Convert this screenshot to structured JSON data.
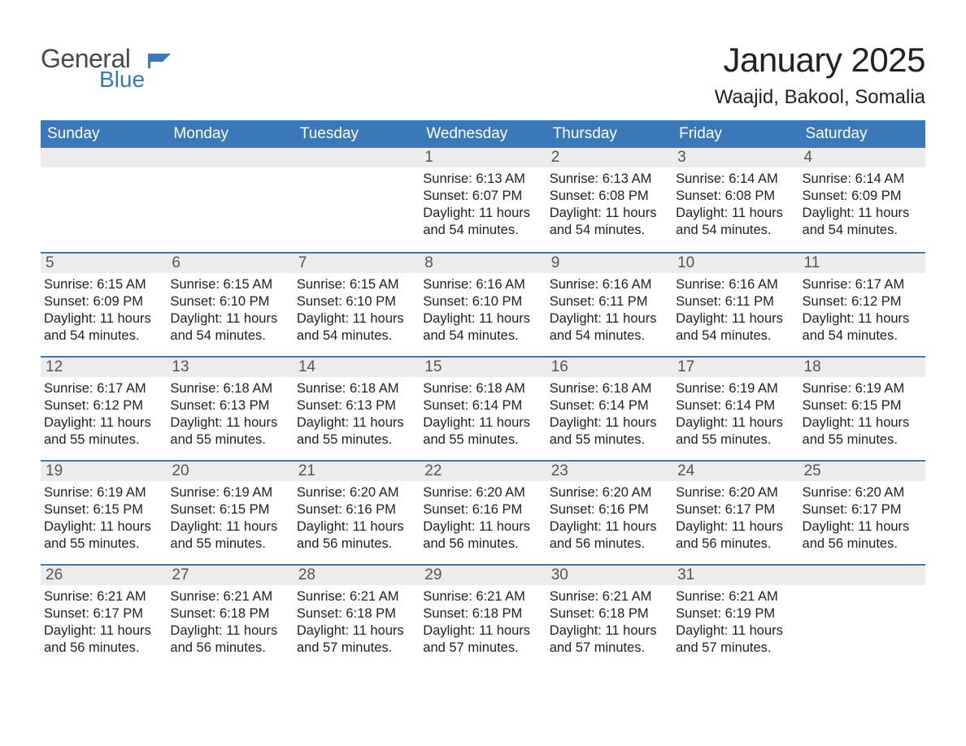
{
  "logo": {
    "word1": "General",
    "word2": "Blue"
  },
  "title": "January 2025",
  "subtitle": "Waajid, Bakool, Somalia",
  "colors": {
    "header_bg": "#3a78b8",
    "header_text": "#ffffff",
    "daynum_bg": "#ececec",
    "daynum_text": "#555555",
    "body_text": "#222222",
    "logo_gray": "#4a4a4a",
    "logo_blue": "#3a78b8",
    "cell_border": "#3a78b8",
    "page_bg": "#ffffff"
  },
  "day_names": [
    "Sunday",
    "Monday",
    "Tuesday",
    "Wednesday",
    "Thursday",
    "Friday",
    "Saturday"
  ],
  "labels": {
    "sunrise": "Sunrise:",
    "sunset": "Sunset:",
    "daylight": "Daylight:"
  },
  "weeks": [
    [
      {
        "day": "",
        "sunrise": "",
        "sunset": "",
        "daylight": ""
      },
      {
        "day": "",
        "sunrise": "",
        "sunset": "",
        "daylight": ""
      },
      {
        "day": "",
        "sunrise": "",
        "sunset": "",
        "daylight": ""
      },
      {
        "day": "1",
        "sunrise": "6:13 AM",
        "sunset": "6:07 PM",
        "daylight": "11 hours and 54 minutes."
      },
      {
        "day": "2",
        "sunrise": "6:13 AM",
        "sunset": "6:08 PM",
        "daylight": "11 hours and 54 minutes."
      },
      {
        "day": "3",
        "sunrise": "6:14 AM",
        "sunset": "6:08 PM",
        "daylight": "11 hours and 54 minutes."
      },
      {
        "day": "4",
        "sunrise": "6:14 AM",
        "sunset": "6:09 PM",
        "daylight": "11 hours and 54 minutes."
      }
    ],
    [
      {
        "day": "5",
        "sunrise": "6:15 AM",
        "sunset": "6:09 PM",
        "daylight": "11 hours and 54 minutes."
      },
      {
        "day": "6",
        "sunrise": "6:15 AM",
        "sunset": "6:10 PM",
        "daylight": "11 hours and 54 minutes."
      },
      {
        "day": "7",
        "sunrise": "6:15 AM",
        "sunset": "6:10 PM",
        "daylight": "11 hours and 54 minutes."
      },
      {
        "day": "8",
        "sunrise": "6:16 AM",
        "sunset": "6:10 PM",
        "daylight": "11 hours and 54 minutes."
      },
      {
        "day": "9",
        "sunrise": "6:16 AM",
        "sunset": "6:11 PM",
        "daylight": "11 hours and 54 minutes."
      },
      {
        "day": "10",
        "sunrise": "6:16 AM",
        "sunset": "6:11 PM",
        "daylight": "11 hours and 54 minutes."
      },
      {
        "day": "11",
        "sunrise": "6:17 AM",
        "sunset": "6:12 PM",
        "daylight": "11 hours and 54 minutes."
      }
    ],
    [
      {
        "day": "12",
        "sunrise": "6:17 AM",
        "sunset": "6:12 PM",
        "daylight": "11 hours and 55 minutes."
      },
      {
        "day": "13",
        "sunrise": "6:18 AM",
        "sunset": "6:13 PM",
        "daylight": "11 hours and 55 minutes."
      },
      {
        "day": "14",
        "sunrise": "6:18 AM",
        "sunset": "6:13 PM",
        "daylight": "11 hours and 55 minutes."
      },
      {
        "day": "15",
        "sunrise": "6:18 AM",
        "sunset": "6:14 PM",
        "daylight": "11 hours and 55 minutes."
      },
      {
        "day": "16",
        "sunrise": "6:18 AM",
        "sunset": "6:14 PM",
        "daylight": "11 hours and 55 minutes."
      },
      {
        "day": "17",
        "sunrise": "6:19 AM",
        "sunset": "6:14 PM",
        "daylight": "11 hours and 55 minutes."
      },
      {
        "day": "18",
        "sunrise": "6:19 AM",
        "sunset": "6:15 PM",
        "daylight": "11 hours and 55 minutes."
      }
    ],
    [
      {
        "day": "19",
        "sunrise": "6:19 AM",
        "sunset": "6:15 PM",
        "daylight": "11 hours and 55 minutes."
      },
      {
        "day": "20",
        "sunrise": "6:19 AM",
        "sunset": "6:15 PM",
        "daylight": "11 hours and 55 minutes."
      },
      {
        "day": "21",
        "sunrise": "6:20 AM",
        "sunset": "6:16 PM",
        "daylight": "11 hours and 56 minutes."
      },
      {
        "day": "22",
        "sunrise": "6:20 AM",
        "sunset": "6:16 PM",
        "daylight": "11 hours and 56 minutes."
      },
      {
        "day": "23",
        "sunrise": "6:20 AM",
        "sunset": "6:16 PM",
        "daylight": "11 hours and 56 minutes."
      },
      {
        "day": "24",
        "sunrise": "6:20 AM",
        "sunset": "6:17 PM",
        "daylight": "11 hours and 56 minutes."
      },
      {
        "day": "25",
        "sunrise": "6:20 AM",
        "sunset": "6:17 PM",
        "daylight": "11 hours and 56 minutes."
      }
    ],
    [
      {
        "day": "26",
        "sunrise": "6:21 AM",
        "sunset": "6:17 PM",
        "daylight": "11 hours and 56 minutes."
      },
      {
        "day": "27",
        "sunrise": "6:21 AM",
        "sunset": "6:18 PM",
        "daylight": "11 hours and 56 minutes."
      },
      {
        "day": "28",
        "sunrise": "6:21 AM",
        "sunset": "6:18 PM",
        "daylight": "11 hours and 57 minutes."
      },
      {
        "day": "29",
        "sunrise": "6:21 AM",
        "sunset": "6:18 PM",
        "daylight": "11 hours and 57 minutes."
      },
      {
        "day": "30",
        "sunrise": "6:21 AM",
        "sunset": "6:18 PM",
        "daylight": "11 hours and 57 minutes."
      },
      {
        "day": "31",
        "sunrise": "6:21 AM",
        "sunset": "6:19 PM",
        "daylight": "11 hours and 57 minutes."
      },
      {
        "day": "",
        "sunrise": "",
        "sunset": "",
        "daylight": ""
      }
    ]
  ]
}
